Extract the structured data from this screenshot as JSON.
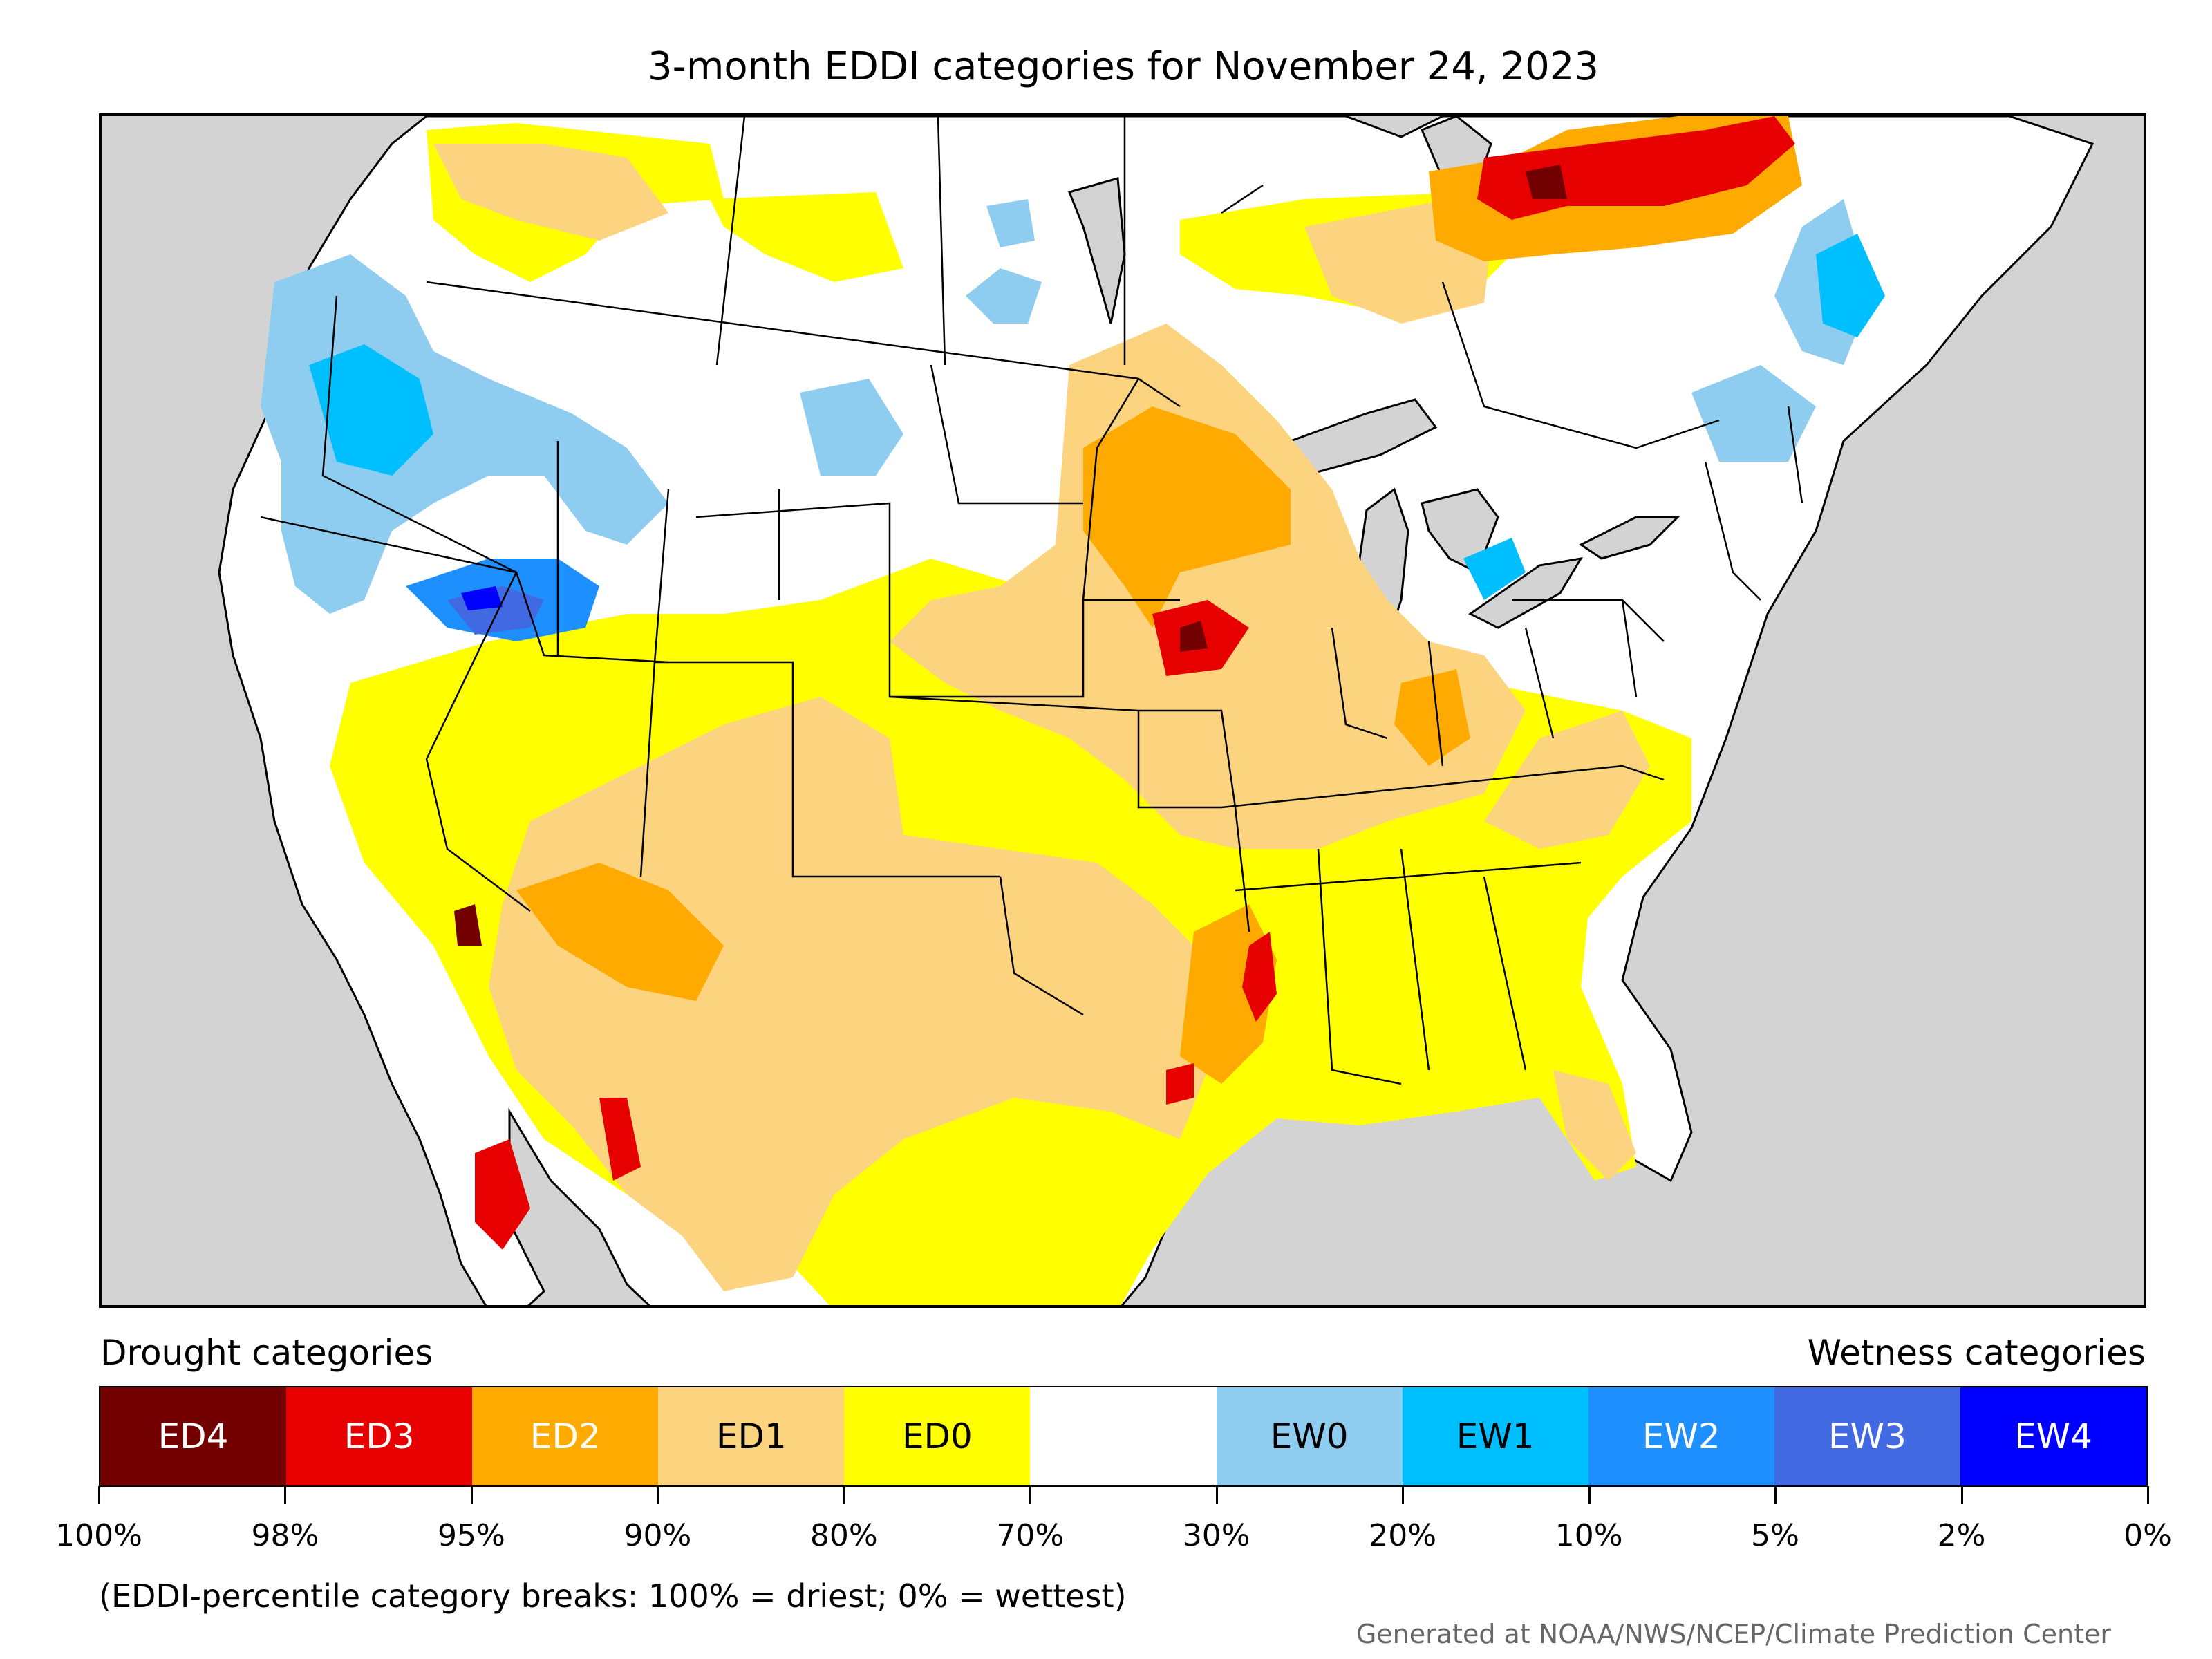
{
  "title": "3-month EDDI categories for November 24, 2023",
  "legend": {
    "drought_heading": "Drought categories",
    "wetness_heading": "Wetness categories",
    "categories": [
      {
        "label": "ED4",
        "color": "#730000",
        "text_color": "#ffffff"
      },
      {
        "label": "ED3",
        "color": "#e60000",
        "text_color": "#ffffff"
      },
      {
        "label": "ED2",
        "color": "#ffaa00",
        "text_color": "#ffffff"
      },
      {
        "label": "ED1",
        "color": "#fcd37f",
        "text_color": "#000000"
      },
      {
        "label": "ED0",
        "color": "#ffff00",
        "text_color": "#000000"
      },
      {
        "label": "",
        "color": "#ffffff",
        "text_color": "#000000"
      },
      {
        "label": "EW0",
        "color": "#8ecdef",
        "text_color": "#000000"
      },
      {
        "label": "EW1",
        "color": "#00bfff",
        "text_color": "#000000"
      },
      {
        "label": "EW2",
        "color": "#1e8fff",
        "text_color": "#ffffff"
      },
      {
        "label": "EW3",
        "color": "#4169e1",
        "text_color": "#ffffff"
      },
      {
        "label": "EW4",
        "color": "#0000ff",
        "text_color": "#ffffff"
      }
    ],
    "breaks": [
      "100%",
      "98%",
      "95%",
      "90%",
      "80%",
      "70%",
      "30%",
      "20%",
      "10%",
      "5%",
      "2%",
      "0%"
    ]
  },
  "note": "(EDDI-percentile category breaks: 100% = driest; 0% = wettest)",
  "credit": "Generated at NOAA/NWS/NCEP/Climate Prediction Center",
  "colors": {
    "background_outside": "#d3d3d3",
    "land_no_category": "#ffffff",
    "boundaries": "#000000"
  }
}
